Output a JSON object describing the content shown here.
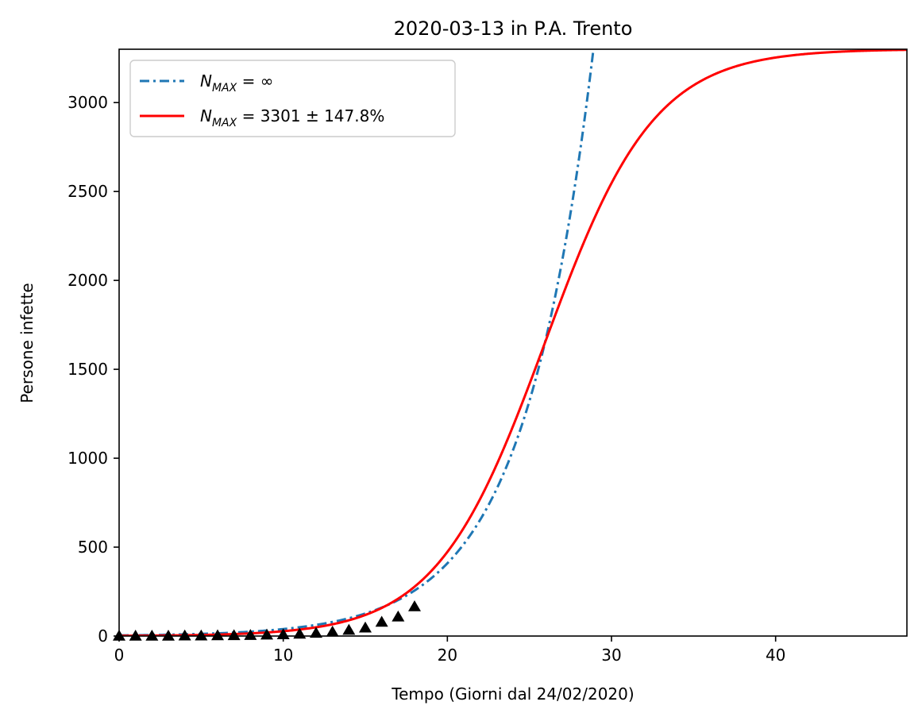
{
  "chart_data": {
    "type": "line",
    "title": "2020-03-13 in P.A. Trento",
    "xlabel": "Tempo (Giorni dal 24/02/2020)",
    "ylabel": "Persone infette",
    "xlim": [
      0,
      48
    ],
    "ylim": [
      0,
      3300
    ],
    "xticks": [
      0,
      10,
      20,
      30,
      40
    ],
    "yticks": [
      0,
      500,
      1000,
      1500,
      2000,
      2500,
      3000
    ],
    "grid": false,
    "legend_position": "top-left",
    "series": [
      {
        "name": "N_MAX = ∞",
        "legend_var": "N",
        "legend_sub": "MAX",
        "legend_rest": " = ∞",
        "style": "dashdot",
        "color": "#1f77b4",
        "model": "exponential",
        "a": 3.75,
        "r": 0.2346
      },
      {
        "name": "N_MAX = 3301 ± 147.8%",
        "legend_var": "N",
        "legend_sub": "MAX",
        "legend_rest": " = 3301 ± 147.8%",
        "style": "solid",
        "color": "#ff0000",
        "model": "logistic",
        "K": 3301,
        "r": 0.3005,
        "t0": 25.95
      }
    ],
    "observed": {
      "marker": "triangle",
      "color": "#000000",
      "x": [
        0,
        1,
        2,
        3,
        4,
        5,
        6,
        7,
        8,
        9,
        10,
        11,
        12,
        13,
        14,
        15,
        16,
        17,
        18
      ],
      "y": [
        0,
        0,
        0,
        0,
        1,
        1,
        2,
        3,
        4,
        6,
        8,
        11,
        16,
        23,
        33,
        46,
        78,
        108,
        165
      ]
    }
  }
}
